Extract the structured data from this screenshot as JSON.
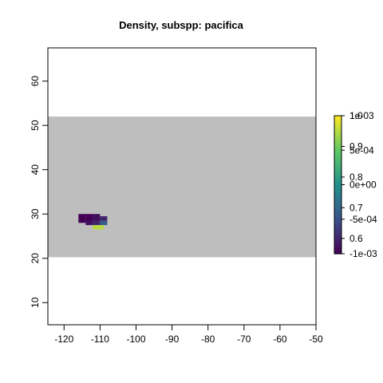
{
  "chart_data": {
    "type": "heatmap",
    "title": "Density, subspp: pacifica",
    "xlabel": "",
    "ylabel": "",
    "xlim": [
      -124.5,
      -50
    ],
    "ylim": [
      5,
      67.5
    ],
    "x_ticks": [
      -120,
      -110,
      -100,
      -90,
      -80,
      -70,
      -60,
      -50
    ],
    "y_ticks": [
      10,
      20,
      30,
      40,
      50,
      60
    ],
    "x_tick_labels": [
      "-120",
      "-110",
      "-100",
      "-90",
      "-80",
      "-70",
      "-60",
      "-50"
    ],
    "y_tick_labels": [
      "10",
      "20",
      "30",
      "40",
      "50",
      "60"
    ],
    "background_region": {
      "x": [
        -124.5,
        -50
      ],
      "y": [
        20.25,
        52
      ],
      "color": "#bebebe"
    },
    "cells": [
      {
        "x0": -116,
        "x1": -114,
        "y0": 28,
        "y1": 30,
        "value": 0.55
      },
      {
        "x0": -114,
        "x1": -112,
        "y0": 28,
        "y1": 30,
        "value": 0.55
      },
      {
        "x0": -112,
        "x1": -110,
        "y0": 28.5,
        "y1": 30,
        "value": 0.57
      },
      {
        "x0": -110,
        "x1": -108,
        "y0": 28.5,
        "y1": 29.5,
        "value": 0.6
      },
      {
        "x0": -114,
        "x1": -112,
        "y0": 27.5,
        "y1": 28.5,
        "value": 0.57
      },
      {
        "x0": -112,
        "x1": -110,
        "y0": 27.5,
        "y1": 28.5,
        "value": 0.6
      },
      {
        "x0": -110,
        "x1": -108,
        "y0": 27.5,
        "y1": 28.5,
        "value": 0.68
      },
      {
        "x0": -112,
        "x1": -110,
        "y0": 26.5,
        "y1": 27.5,
        "value": 0.95
      },
      {
        "x0": -110,
        "x1": -109,
        "y0": 26.5,
        "y1": 27.5,
        "value": 0.95
      }
    ],
    "legend": {
      "placement": "right",
      "range": [
        0.55,
        1.0
      ],
      "colors": [
        "#440154",
        "#3b528b",
        "#21908c",
        "#5dc863",
        "#fde725"
      ],
      "scale_a": {
        "ticks": [
          1.0,
          0.9,
          0.8,
          0.7,
          0.6
        ],
        "labels": [
          "1.0",
          "0.9",
          "0.8",
          "0.7",
          "0.6"
        ],
        "range": [
          0.55,
          1.0
        ]
      },
      "scale_b": {
        "ticks": [
          0.001,
          0.0005,
          0,
          -0.0005,
          -0.001
        ],
        "labels": [
          "1e-03",
          "5e-04",
          "0e+00",
          "-5e-04",
          "-1e-03"
        ],
        "range": [
          -0.001,
          0.001
        ]
      }
    }
  }
}
